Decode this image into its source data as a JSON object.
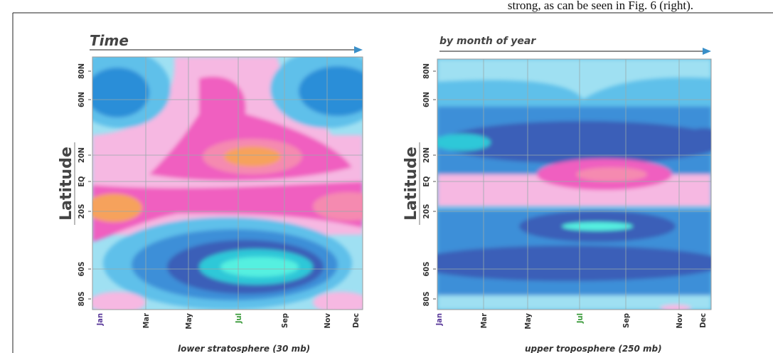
{
  "text_fragment": "strong, as can be seen in Fig. 6 (right).",
  "panels": [
    {
      "title": "Time",
      "y_label": "Latitude",
      "y_ticks": [
        "80N",
        "60N",
        "20N",
        "EQ",
        "20S",
        "60S",
        "80S"
      ],
      "x_ticks": [
        "Jan",
        "Mar",
        "May",
        "Jul",
        "Sep",
        "Nov",
        "Dec"
      ],
      "caption": "lower stratosphere (30 mb)"
    },
    {
      "title": "by month of year",
      "y_label": "Latitude",
      "y_ticks": [
        "80N",
        "60N",
        "20N",
        "EQ",
        "20S",
        "60S",
        "80S"
      ],
      "x_ticks": [
        "Jan",
        "Mar",
        "May",
        "Jul",
        "Sep",
        "Nov",
        "Dec"
      ],
      "caption": "upper troposphere (250 mb)"
    }
  ]
}
